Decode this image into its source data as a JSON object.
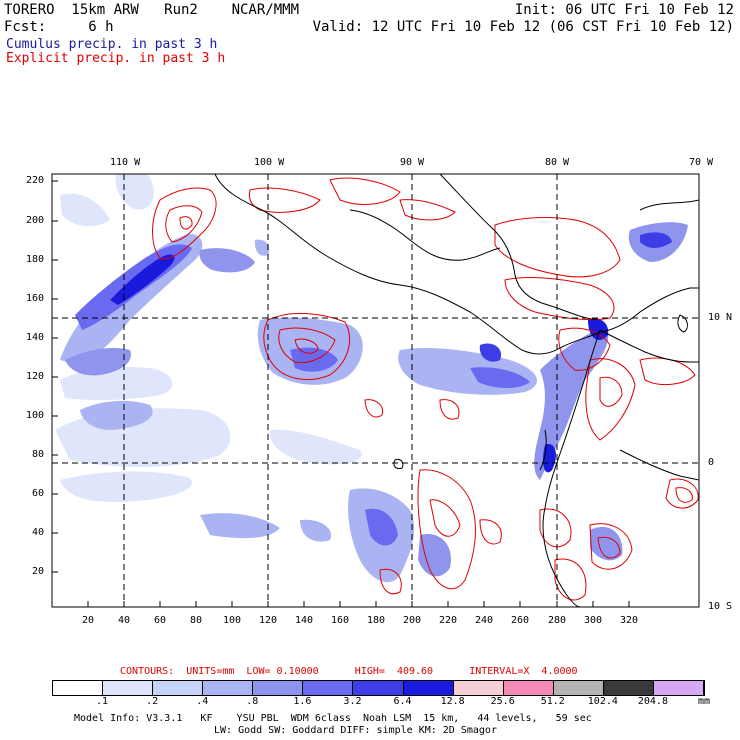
{
  "header": {
    "line1_left": "TORERO  15km ARW   Run2    NCAR/MMM",
    "line1_right": "Init: 06 UTC Fri 10 Feb 12",
    "line2_left": "Fcst:     6 h",
    "line2_right": "Valid: 12 UTC Fri 10 Feb 12 (06 CST Fri 10 Feb 12)",
    "line3": "Cumulus precip. in past 3 h",
    "line4": "Explicit precip. in past 3 h"
  },
  "map": {
    "lon_labels": [
      "110 W",
      "100 W",
      "90 W",
      "80 W",
      "70 W"
    ],
    "lat_labels": [
      "10 N",
      "0",
      "10 S"
    ],
    "y_ticks": [
      "220",
      "200",
      "180",
      "160",
      "140",
      "120",
      "100",
      "80",
      "60",
      "40",
      "20"
    ],
    "x_ticks": [
      "20",
      "40",
      "60",
      "80",
      "100",
      "120",
      "140",
      "160",
      "180",
      "200",
      "220",
      "240",
      "260",
      "280",
      "300",
      "320"
    ],
    "colors": {
      "cumulus_dark": "#1a1adc",
      "cumulus_mid": "#6a6af0",
      "cumulus_light": "#aab4f2",
      "cumulus_pale": "#dfe6fb",
      "explicit_contour": "#e00000",
      "coastline": "#000000"
    }
  },
  "contours_line": {
    "label": "CONTOURS:  UNITS=mm  LOW= 0.10000      HIGH=  409.60      INTERVAL=X  4.0000"
  },
  "colorbar": {
    "labels": [
      ".1",
      ".2",
      ".4",
      ".8",
      "1.6",
      "3.2",
      "6.4",
      "12.8",
      "25.6",
      "51.2",
      "102.4",
      "204.8"
    ],
    "unit": "mm",
    "colors": [
      "#ffffff",
      "#dfe6fb",
      "#c6d2f8",
      "#aab4f2",
      "#8f95ec",
      "#6a6af0",
      "#3e3ee8",
      "#1a1adc",
      "#f6d0d6",
      "#f28cb6",
      "#b4b4b4",
      "#3a3a3a",
      "#d7a8f5"
    ]
  },
  "footer": {
    "line1": "Model Info: V3.3.1   KF    YSU PBL  WDM 6class  Noah LSM  15 km,   44 levels,   59 sec",
    "line2": "LW: Godd SW: Goddard DIFF: simple KM: 2D Smagor"
  }
}
